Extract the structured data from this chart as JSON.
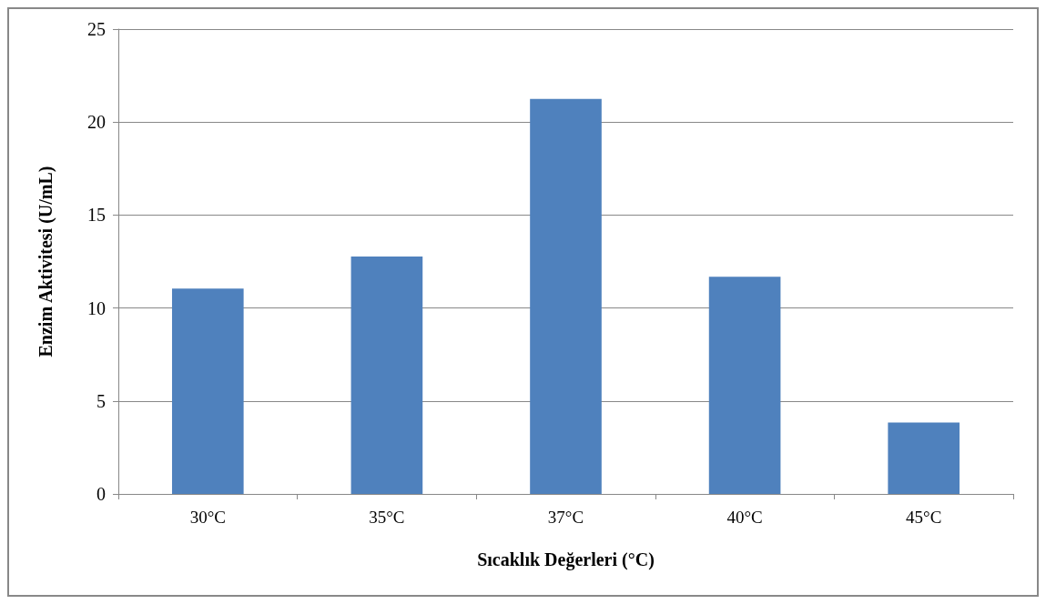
{
  "chart_data": {
    "type": "bar",
    "xlabel": "Sıcaklık Değerleri (°C)",
    "ylabel": "Enzim Aktivitesi (U/mL)",
    "categories": [
      "30°C",
      "35°C",
      "37°C",
      "40°C",
      "45°C"
    ],
    "values": [
      11.05,
      12.77,
      21.24,
      11.68,
      3.84
    ],
    "color": "#4f81bd",
    "ylim": [
      0,
      25
    ],
    "yticks": [
      0,
      5,
      10,
      15,
      20,
      25
    ],
    "grid": "y"
  }
}
